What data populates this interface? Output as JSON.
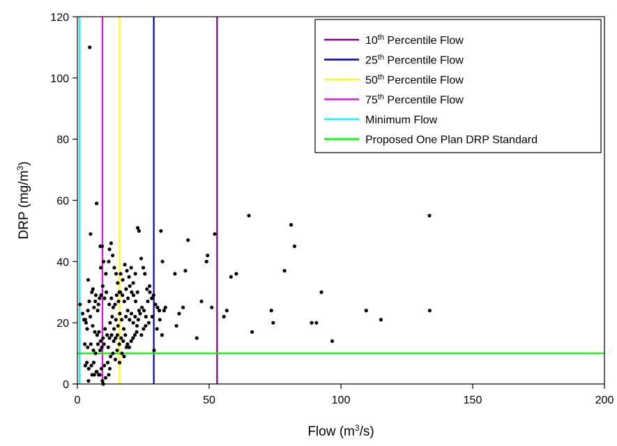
{
  "chart_data": {
    "type": "scatter",
    "xlabel": {
      "base": "Flow (m",
      "sup": "3",
      "tail": "/s)"
    },
    "ylabel": {
      "base": "DRP (mg/m",
      "sup": "3",
      "tail": ")"
    },
    "xlim": [
      0,
      200
    ],
    "ylim": [
      0,
      120
    ],
    "x_ticks": [
      0,
      50,
      100,
      150,
      200
    ],
    "y_ticks": [
      0,
      20,
      40,
      60,
      80,
      100,
      120
    ],
    "grid": false,
    "legend_position": "top-right",
    "series": [
      {
        "kind": "points",
        "color": "#000000",
        "points": [
          [
            4.7,
            110
          ],
          [
            7.3,
            59
          ],
          [
            5,
            49
          ],
          [
            8.7,
            45
          ],
          [
            9.4,
            45
          ],
          [
            8,
            26
          ],
          [
            9,
            29
          ],
          [
            1,
            26
          ],
          [
            2,
            23
          ],
          [
            3,
            21
          ],
          [
            4,
            24
          ],
          [
            4.5,
            27
          ],
          [
            5.5,
            30
          ],
          [
            6.3,
            25
          ],
          [
            7,
            29
          ],
          [
            7.7,
            24
          ],
          [
            8.4,
            28
          ],
          [
            9.6,
            32
          ],
          [
            10.3,
            28
          ],
          [
            11,
            30
          ],
          [
            2.5,
            21
          ],
          [
            3.3,
            20
          ],
          [
            3.7,
            18
          ],
          [
            4.9,
            22
          ],
          [
            5.8,
            19
          ],
          [
            6.6,
            17
          ],
          [
            7.5,
            16
          ],
          [
            8.2,
            17
          ],
          [
            8.8,
            14
          ],
          [
            9.7,
            15
          ],
          [
            10.5,
            18
          ],
          [
            11.3,
            16
          ],
          [
            2.8,
            13
          ],
          [
            3.9,
            12
          ],
          [
            5.1,
            13
          ],
          [
            6.1,
            11
          ],
          [
            6.9,
            10
          ],
          [
            7.8,
            13
          ],
          [
            8.6,
            11
          ],
          [
            9.3,
            12
          ],
          [
            10.1,
            13
          ],
          [
            11.7,
            12
          ],
          [
            3,
            6
          ],
          [
            3.6,
            7
          ],
          [
            4.3,
            5
          ],
          [
            5.3,
            6
          ],
          [
            6.2,
            7
          ],
          [
            7.2,
            4
          ],
          [
            8.1,
            3
          ],
          [
            9.1,
            5
          ],
          [
            10.2,
            6
          ],
          [
            11.5,
            7
          ],
          [
            12.3,
            5
          ],
          [
            4.2,
            1
          ],
          [
            5.6,
            3
          ],
          [
            6.4,
            3
          ],
          [
            7.4,
            4
          ],
          [
            8.5,
            3
          ],
          [
            9.5,
            1
          ],
          [
            10.7,
            2
          ],
          [
            11.9,
            3
          ],
          [
            9.8,
            0
          ],
          [
            4.1,
            34
          ],
          [
            5.9,
            31
          ],
          [
            6.8,
            27
          ],
          [
            8.9,
            38
          ],
          [
            9.9,
            40
          ],
          [
            10.8,
            36
          ],
          [
            11.9,
            40
          ],
          [
            12.2,
            44
          ],
          [
            12.8,
            46
          ],
          [
            13.4,
            42
          ],
          [
            14,
            38
          ],
          [
            14.7,
            36
          ],
          [
            15.3,
            33
          ],
          [
            15.9,
            30
          ],
          [
            12.1,
            26
          ],
          [
            12.9,
            28
          ],
          [
            13.6,
            25
          ],
          [
            14.3,
            26
          ],
          [
            14.9,
            29
          ],
          [
            15.6,
            27
          ],
          [
            16.3,
            30
          ],
          [
            17.1,
            29
          ],
          [
            17.8,
            27
          ],
          [
            18.5,
            31
          ],
          [
            19.2,
            28
          ],
          [
            19.9,
            32
          ],
          [
            20.6,
            30
          ],
          [
            21.3,
            29
          ],
          [
            22.1,
            27
          ],
          [
            22.8,
            30
          ],
          [
            12.4,
            20
          ],
          [
            13.2,
            22
          ],
          [
            13.9,
            18
          ],
          [
            14.6,
            21
          ],
          [
            15.4,
            19
          ],
          [
            16.1,
            23
          ],
          [
            16.8,
            21
          ],
          [
            17.6,
            18
          ],
          [
            18.4,
            22
          ],
          [
            19.1,
            24
          ],
          [
            19.8,
            21
          ],
          [
            20.5,
            23
          ],
          [
            21.2,
            20
          ],
          [
            21.9,
            22
          ],
          [
            22.6,
            19
          ],
          [
            23.4,
            24
          ],
          [
            12.2,
            15
          ],
          [
            13,
            16
          ],
          [
            13.8,
            14
          ],
          [
            14.5,
            15
          ],
          [
            15.2,
            16
          ],
          [
            15.9,
            13
          ],
          [
            16.6,
            15
          ],
          [
            17.4,
            14
          ],
          [
            18.2,
            16
          ],
          [
            19,
            13
          ],
          [
            19.7,
            12
          ],
          [
            20.4,
            14
          ],
          [
            21.1,
            15
          ],
          [
            21.8,
            16
          ],
          [
            22.5,
            17
          ],
          [
            12.6,
            9
          ],
          [
            13.5,
            10
          ],
          [
            14.4,
            8
          ],
          [
            15.1,
            11
          ],
          [
            16,
            7
          ],
          [
            16.9,
            10
          ],
          [
            17.7,
            9
          ],
          [
            18.6,
            12
          ],
          [
            16.4,
            36
          ],
          [
            17.2,
            34
          ],
          [
            18,
            39
          ],
          [
            18.8,
            37
          ],
          [
            19.6,
            35
          ],
          [
            20.4,
            38
          ],
          [
            21.2,
            33
          ],
          [
            22,
            36
          ],
          [
            22.9,
            51
          ],
          [
            23.4,
            50
          ],
          [
            24.2,
            41
          ],
          [
            25,
            38
          ],
          [
            25.6,
            36
          ],
          [
            26.4,
            31
          ],
          [
            27.4,
            32
          ],
          [
            23.1,
            21
          ],
          [
            23.8,
            23
          ],
          [
            24.5,
            25
          ],
          [
            25.3,
            24
          ],
          [
            26,
            22
          ],
          [
            26.7,
            27
          ],
          [
            27.5,
            30
          ],
          [
            28.2,
            28
          ],
          [
            28.9,
            29
          ],
          [
            29.6,
            26
          ],
          [
            30.4,
            25
          ],
          [
            31.1,
            24
          ],
          [
            31.7,
            50
          ],
          [
            32.3,
            40
          ],
          [
            32.9,
            24
          ],
          [
            33.4,
            25
          ],
          [
            24.3,
            16
          ],
          [
            25.1,
            18
          ],
          [
            25.9,
            19
          ],
          [
            27.1,
            20
          ],
          [
            28.4,
            22
          ],
          [
            29.1,
            11
          ],
          [
            30.2,
            18
          ],
          [
            31.3,
            21
          ],
          [
            32.1,
            16
          ],
          [
            37,
            36
          ],
          [
            37.6,
            19
          ],
          [
            38.6,
            23
          ],
          [
            40.1,
            25
          ],
          [
            41,
            37
          ],
          [
            42,
            47
          ],
          [
            45.3,
            15
          ],
          [
            47.1,
            27
          ],
          [
            49,
            40
          ],
          [
            49.4,
            42
          ],
          [
            51,
            25
          ],
          [
            52.1,
            49
          ],
          [
            55.6,
            22
          ],
          [
            56.7,
            24
          ],
          [
            58.3,
            35
          ],
          [
            60.3,
            36
          ],
          [
            65.1,
            55
          ],
          [
            66.3,
            17
          ],
          [
            73.6,
            24
          ],
          [
            74.3,
            20
          ],
          [
            78.6,
            37
          ],
          [
            81.1,
            52
          ],
          [
            82.4,
            45
          ],
          [
            88.9,
            20
          ],
          [
            90.7,
            20
          ],
          [
            92.6,
            30
          ],
          [
            96.7,
            14
          ],
          [
            109.6,
            24
          ],
          [
            115.2,
            21
          ],
          [
            133.6,
            55
          ],
          [
            133.7,
            24
          ]
        ]
      }
    ],
    "reference_lines": [
      {
        "orientation": "vertical",
        "x": 53,
        "color": "#800080",
        "legend_base": "10",
        "legend_sup": "th",
        "legend_tail": " Percentile Flow"
      },
      {
        "orientation": "vertical",
        "x": 29,
        "color": "#0000cc",
        "legend_base": "25",
        "legend_sup": "th",
        "legend_tail": " Percentile Flow"
      },
      {
        "orientation": "vertical",
        "x": 16,
        "color": "#ffff00",
        "legend_base": "50",
        "legend_sup": "th",
        "legend_tail": " Percentile Flow"
      },
      {
        "orientation": "vertical",
        "x": 9.5,
        "color": "#ff00ff",
        "legend_base": "75",
        "legend_sup": "th",
        "legend_tail": " Percentile Flow"
      },
      {
        "orientation": "vertical",
        "x": 0.8,
        "color": "#00ffff",
        "legend_base": "Minimum Flow",
        "legend_sup": "",
        "legend_tail": ""
      },
      {
        "orientation": "horizontal",
        "y": 10,
        "color": "#00ff00",
        "legend_base": "Proposed One Plan DRP Standard",
        "legend_sup": "",
        "legend_tail": ""
      }
    ]
  }
}
